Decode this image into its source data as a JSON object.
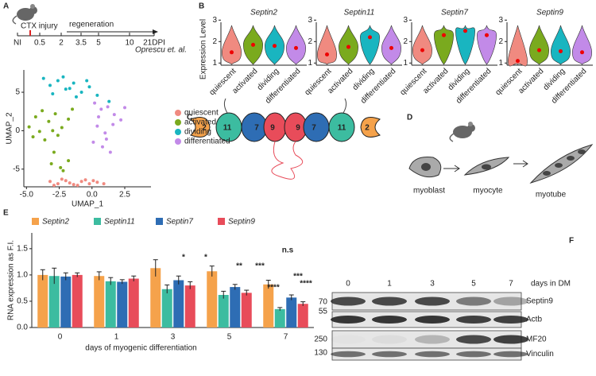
{
  "figure": {
    "panel_labels": [
      "A",
      "B",
      "C",
      "D",
      "E",
      "F"
    ],
    "timeline": {
      "injury": "CTX injury",
      "phase": "regeneration",
      "ticks": [
        "NI",
        "0.5",
        "2",
        "3.5",
        "5",
        "10",
        "21DPI"
      ],
      "source": "Oprescu et. al."
    },
    "violin_ylabel": "Expression Level",
    "filament": [
      "2",
      "11",
      "7",
      "9",
      "9",
      "7",
      "11",
      "2"
    ],
    "cells": [
      "myoblast",
      "myocyte",
      "myotube"
    ],
    "blot": {
      "lanes": [
        "0",
        "1",
        "3",
        "5",
        "7"
      ],
      "lane_title": "days in DM",
      "labels": [
        "Septin9",
        "Actb",
        "MF20",
        "Vinculin"
      ],
      "markers": [
        "70",
        "55",
        "250",
        "130"
      ]
    }
  },
  "chart_data": [
    {
      "type": "scatter",
      "xlabel": "UMAP_1",
      "ylabel": "UMAP_2",
      "xlim": [
        -5.2,
        4.5
      ],
      "ylim": [
        -7.3,
        7.9
      ],
      "xticks": [
        {
          "value": -5,
          "label": "-5.0"
        },
        {
          "value": -2.5,
          "label": "-2.5"
        },
        {
          "value": 0,
          "label": "0.0"
        },
        {
          "value": 2.5,
          "label": "2.5"
        }
      ],
      "yticks": [
        -5,
        0,
        5
      ],
      "series": [
        {
          "name": "quiescent",
          "color": "#f08a80",
          "x": [
            -3.2,
            -2.6,
            -2.0,
            -1.4,
            -0.8,
            -0.2,
            0.4,
            -2.9,
            -1.7,
            -0.5,
            0.9,
            -2.3,
            -1.1,
            0.1
          ],
          "y": [
            -6.6,
            -6.9,
            -6.5,
            -7.0,
            -6.6,
            -6.9,
            -6.7,
            -7.1,
            -6.8,
            -6.4,
            -6.9,
            -6.3,
            -7.1,
            -6.5
          ]
        },
        {
          "name": "activated",
          "color": "#7aaa1e",
          "x": [
            -4.8,
            -4.3,
            -3.8,
            -3.3,
            -2.8,
            -2.3,
            -1.8,
            -4.5,
            -3.6,
            -2.6,
            -1.5,
            -3.1,
            -2.4,
            -1.8,
            -2.9,
            -2.2,
            -4.0,
            -3.0
          ],
          "y": [
            0.5,
            1.8,
            2.6,
            1.2,
            2.2,
            0.4,
            1.5,
            -0.8,
            -1.2,
            -0.6,
            2.8,
            -4.3,
            -4.8,
            -3.9,
            -2.8,
            -5.2,
            -0.1,
            0.0
          ]
        },
        {
          "name": "dividing",
          "color": "#19b5c0",
          "x": [
            -3.7,
            -3.2,
            -2.6,
            -2.0,
            -1.4,
            -0.8,
            -0.2,
            0.4,
            -3.0,
            -2.2,
            -1.2,
            -0.4,
            1.3,
            -1.7
          ],
          "y": [
            6.8,
            5.9,
            6.5,
            5.4,
            6.2,
            5.0,
            5.7,
            4.6,
            4.8,
            7.0,
            4.4,
            6.5,
            3.8,
            5.5
          ]
        },
        {
          "name": "differentiated",
          "color": "#c28ae8",
          "x": [
            0.2,
            0.7,
            1.2,
            1.7,
            2.2,
            0.4,
            1.0,
            1.6,
            0.1,
            0.8,
            1.4,
            2.5,
            0.5,
            1.1
          ],
          "y": [
            3.6,
            2.8,
            3.1,
            2.1,
            1.4,
            0.6,
            -0.3,
            0.8,
            -1.5,
            -2.1,
            -2.8,
            3.0,
            1.8,
            -1.1
          ]
        }
      ]
    },
    {
      "type": "violin",
      "title": "Septin2",
      "categories": [
        "quiescent",
        "activated",
        "dividing",
        "differentiated"
      ],
      "colors": [
        "#f08a80",
        "#7aaa1e",
        "#19b5c0",
        "#c28ae8"
      ],
      "values": [
        1.5,
        1.85,
        1.8,
        1.7
      ],
      "ylim": [
        0.9,
        2.9
      ],
      "yticks": [
        1,
        2,
        3
      ]
    },
    {
      "type": "violin",
      "title": "Septin11",
      "categories": [
        "quiescent",
        "activated",
        "dividing",
        "differentiated"
      ],
      "colors": [
        "#f08a80",
        "#7aaa1e",
        "#19b5c0",
        "#c28ae8"
      ],
      "values": [
        1.4,
        1.75,
        2.2,
        1.7
      ],
      "ylim": [
        0.9,
        2.9
      ],
      "yticks": [
        1,
        2,
        3
      ]
    },
    {
      "type": "violin",
      "title": "Septin7",
      "categories": [
        "quiescent",
        "activated",
        "dividing",
        "differentiated"
      ],
      "colors": [
        "#f08a80",
        "#7aaa1e",
        "#19b5c0",
        "#c28ae8"
      ],
      "values": [
        1.6,
        2.3,
        2.5,
        2.3
      ],
      "ylim": [
        0.9,
        2.9
      ],
      "yticks": [
        1,
        2,
        3
      ]
    },
    {
      "type": "violin",
      "title": "Septin9",
      "categories": [
        "quiescent",
        "activated",
        "dividing",
        "differentiated"
      ],
      "colors": [
        "#f08a80",
        "#7aaa1e",
        "#19b5c0",
        "#c28ae8"
      ],
      "values": [
        1.1,
        1.6,
        1.55,
        1.5
      ],
      "ylim": [
        0.9,
        2.9
      ],
      "yticks": [
        1,
        2,
        3
      ]
    },
    {
      "type": "bar",
      "xlabel": "days of myogenic differentiation",
      "ylabel": "RNA expression as F.I.",
      "categories": [
        "0",
        "1",
        "3",
        "5",
        "7"
      ],
      "ylim": [
        0,
        1.8
      ],
      "yticks": [
        {
          "value": 0,
          "label": "0.0"
        },
        {
          "value": 0.5,
          "label": "0.5"
        },
        {
          "value": 1,
          "label": "1.0"
        },
        {
          "value": 1.5,
          "label": "1.5"
        }
      ],
      "series": [
        {
          "name": "Septin2",
          "color": "#f5a24b",
          "values": [
            1.0,
            0.98,
            1.13,
            1.07,
            0.82
          ],
          "errors": [
            0.1,
            0.08,
            0.16,
            0.1,
            0.08
          ]
        },
        {
          "name": "Septin11",
          "color": "#3cbca0",
          "values": [
            0.98,
            0.88,
            0.73,
            0.62,
            0.35
          ],
          "errors": [
            0.15,
            0.07,
            0.08,
            0.07,
            0.03
          ]
        },
        {
          "name": "Septin7",
          "color": "#2e6db4",
          "values": [
            0.97,
            0.87,
            0.9,
            0.77,
            0.57
          ],
          "errors": [
            0.07,
            0.04,
            0.08,
            0.05,
            0.05
          ]
        },
        {
          "name": "Septin9",
          "color": "#e84c5a",
          "values": [
            1.0,
            0.93,
            0.8,
            0.66,
            0.45
          ],
          "errors": [
            0.04,
            0.05,
            0.07,
            0.05,
            0.04
          ]
        }
      ],
      "annotations": [
        "*",
        "*",
        "**",
        "***",
        "n.s",
        "***",
        "****",
        "****"
      ]
    }
  ]
}
